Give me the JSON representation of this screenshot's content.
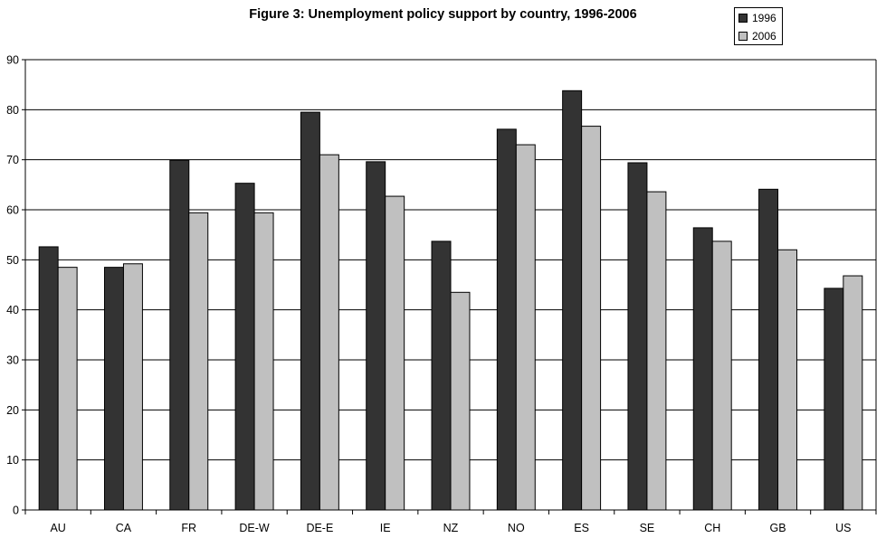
{
  "chart_data": {
    "type": "bar",
    "title": "Figure 3: Unemployment policy support by country, 1996-2006",
    "categories": [
      "AU",
      "CA",
      "FR",
      "DE-W",
      "DE-E",
      "IE",
      "NZ",
      "NO",
      "ES",
      "SE",
      "CH",
      "GB",
      "US"
    ],
    "series": [
      {
        "name": "1996",
        "color": "#333333",
        "values": [
          52.6,
          48.5,
          69.9,
          65.3,
          79.5,
          69.6,
          53.7,
          76.1,
          83.8,
          69.4,
          56.4,
          64.1,
          44.3
        ]
      },
      {
        "name": "2006",
        "color": "#c0c0c0",
        "values": [
          48.5,
          49.2,
          59.4,
          59.4,
          71.0,
          62.7,
          43.5,
          73.0,
          76.7,
          63.6,
          53.7,
          52.0,
          46.8
        ]
      }
    ],
    "ylim": [
      0,
      90
    ],
    "yticks": [
      0,
      10,
      20,
      30,
      40,
      50,
      60,
      70,
      80,
      90
    ],
    "xlabel": "",
    "ylabel": "",
    "grid": true,
    "legend_position": "top-right"
  }
}
